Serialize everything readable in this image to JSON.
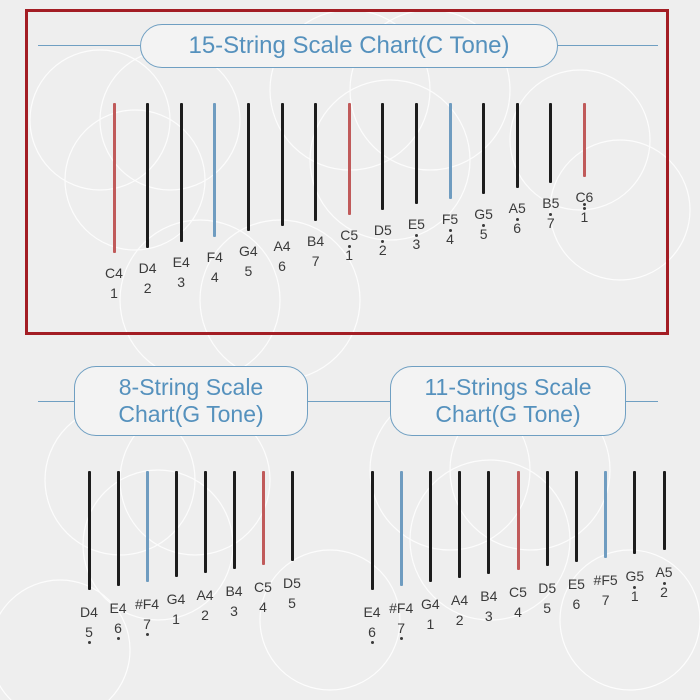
{
  "colors": {
    "background": "#eeeeee",
    "frame": "#a31d24",
    "accent_blue": "#5591bd",
    "line_blue": "#6f9fc2",
    "tine_black": "#1c1c1c",
    "tine_red": "#c05a5a",
    "tine_blue": "#6f9cc0",
    "text": "#3a3a3a"
  },
  "charts": [
    {
      "title": "15-String Scale Chart(C Tone)",
      "tines": [
        {
          "note": "C4",
          "degree": "1",
          "color": "red",
          "dots": 0
        },
        {
          "note": "D4",
          "degree": "2",
          "color": "black",
          "dots": 0
        },
        {
          "note": "E4",
          "degree": "3",
          "color": "black",
          "dots": 0
        },
        {
          "note": "F4",
          "degree": "4",
          "color": "blue",
          "dots": 0
        },
        {
          "note": "G4",
          "degree": "5",
          "color": "black",
          "dots": 0
        },
        {
          "note": "A4",
          "degree": "6",
          "color": "black",
          "dots": 0
        },
        {
          "note": "B4",
          "degree": "7",
          "color": "black",
          "dots": 0
        },
        {
          "note": "C5",
          "degree": "1",
          "color": "red",
          "dots": 1
        },
        {
          "note": "D5",
          "degree": "2",
          "color": "black",
          "dots": 1
        },
        {
          "note": "E5",
          "degree": "3",
          "color": "black",
          "dots": 1
        },
        {
          "note": "F5",
          "degree": "4",
          "color": "blue",
          "dots": 1
        },
        {
          "note": "G5",
          "degree": "5",
          "color": "black",
          "dots": 1
        },
        {
          "note": "A5",
          "degree": "6",
          "color": "black",
          "dots": 1
        },
        {
          "note": "B5",
          "degree": "7",
          "color": "black",
          "dots": 1
        },
        {
          "note": "C6",
          "degree": "1",
          "color": "red",
          "dots": 2
        }
      ]
    },
    {
      "title": "8-String Scale\nChart(G Tone)",
      "tines": [
        {
          "note": "D4",
          "degree": "5",
          "color": "black",
          "dots": -1
        },
        {
          "note": "E4",
          "degree": "6",
          "color": "black",
          "dots": -1
        },
        {
          "note": "#F4",
          "degree": "7",
          "color": "blue",
          "dots": -1
        },
        {
          "note": "G4",
          "degree": "1",
          "color": "black",
          "dots": 0
        },
        {
          "note": "A4",
          "degree": "2",
          "color": "black",
          "dots": 0
        },
        {
          "note": "B4",
          "degree": "3",
          "color": "black",
          "dots": 0
        },
        {
          "note": "C5",
          "degree": "4",
          "color": "red",
          "dots": 0
        },
        {
          "note": "D5",
          "degree": "5",
          "color": "black",
          "dots": 0
        }
      ]
    },
    {
      "title": "11-Strings Scale\nChart(G Tone)",
      "tines": [
        {
          "note": "E4",
          "degree": "6",
          "color": "black",
          "dots": -1
        },
        {
          "note": "#F4",
          "degree": "7",
          "color": "blue",
          "dots": -1
        },
        {
          "note": "G4",
          "degree": "1",
          "color": "black",
          "dots": 0
        },
        {
          "note": "A4",
          "degree": "2",
          "color": "black",
          "dots": 0
        },
        {
          "note": "B4",
          "degree": "3",
          "color": "black",
          "dots": 0
        },
        {
          "note": "C5",
          "degree": "4",
          "color": "red",
          "dots": 0
        },
        {
          "note": "D5",
          "degree": "5",
          "color": "black",
          "dots": 0
        },
        {
          "note": "E5",
          "degree": "6",
          "color": "black",
          "dots": 0
        },
        {
          "note": "#F5",
          "degree": "7",
          "color": "blue",
          "dots": 0
        },
        {
          "note": "G5",
          "degree": "1",
          "color": "black",
          "dots": 1
        },
        {
          "note": "A5",
          "degree": "2",
          "color": "black",
          "dots": 1
        }
      ]
    }
  ]
}
